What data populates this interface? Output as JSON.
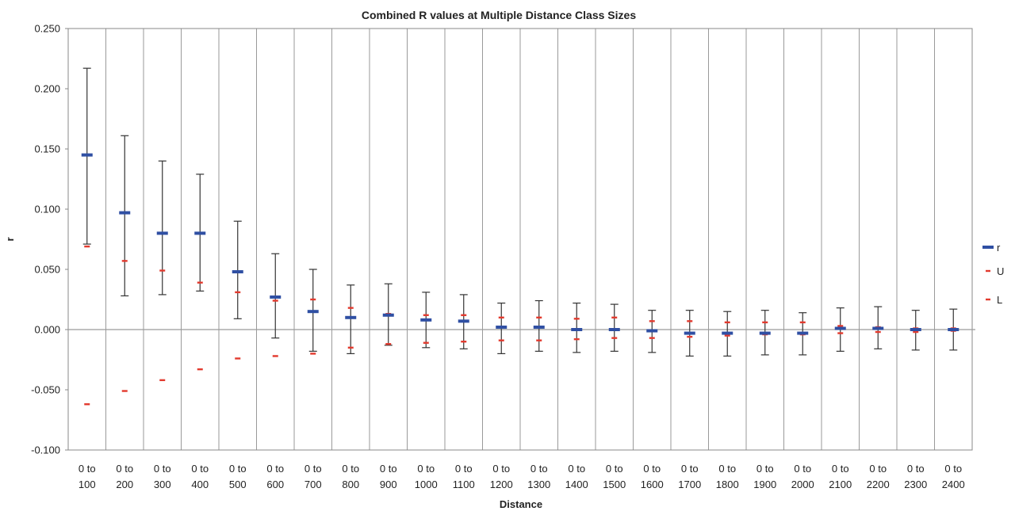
{
  "chart_data": {
    "type": "scatter",
    "title": "Combined R values at Multiple Distance Class Sizes",
    "xlabel": "Distance",
    "ylabel": "r",
    "ylim": [
      -0.1,
      0.25
    ],
    "yticks": [
      "-0.100",
      "-0.050",
      "0.000",
      "0.050",
      "0.100",
      "0.150",
      "0.200",
      "0.250"
    ],
    "grid": "vertical",
    "legend_position": "right",
    "categories": [
      [
        "0 to",
        "100"
      ],
      [
        "0 to",
        "200"
      ],
      [
        "0 to",
        "300"
      ],
      [
        "0 to",
        "400"
      ],
      [
        "0 to",
        "500"
      ],
      [
        "0 to",
        "600"
      ],
      [
        "0 to",
        "700"
      ],
      [
        "0 to",
        "800"
      ],
      [
        "0 to",
        "900"
      ],
      [
        "0 to",
        "1000"
      ],
      [
        "0 to",
        "1100"
      ],
      [
        "0 to",
        "1200"
      ],
      [
        "0 to",
        "1300"
      ],
      [
        "0 to",
        "1400"
      ],
      [
        "0 to",
        "1500"
      ],
      [
        "0 to",
        "1600"
      ],
      [
        "0 to",
        "1700"
      ],
      [
        "0 to",
        "1800"
      ],
      [
        "0 to",
        "1900"
      ],
      [
        "0 to",
        "2000"
      ],
      [
        "0 to",
        "2100"
      ],
      [
        "0 to",
        "2200"
      ],
      [
        "0 to",
        "2300"
      ],
      [
        "0 to",
        "2400"
      ]
    ],
    "error_bars": {
      "upper": [
        0.217,
        0.161,
        0.14,
        0.129,
        0.09,
        0.063,
        0.05,
        0.037,
        0.038,
        0.031,
        0.029,
        0.022,
        0.024,
        0.022,
        0.021,
        0.016,
        0.016,
        0.015,
        0.016,
        0.014,
        0.018,
        0.019,
        0.016,
        0.017
      ],
      "lower": [
        0.071,
        0.028,
        0.029,
        0.032,
        0.009,
        -0.007,
        -0.018,
        -0.02,
        -0.013,
        -0.015,
        -0.016,
        -0.02,
        -0.018,
        -0.019,
        -0.018,
        -0.019,
        -0.022,
        -0.022,
        -0.021,
        -0.021,
        -0.018,
        -0.016,
        -0.017,
        -0.017
      ]
    },
    "series": [
      {
        "name": "r",
        "color": "#2f4fa3",
        "marker": "bar",
        "values": [
          0.145,
          0.097,
          0.08,
          0.08,
          0.048,
          0.027,
          0.015,
          0.01,
          0.012,
          0.008,
          0.007,
          0.002,
          0.002,
          0.0,
          0.0,
          -0.001,
          -0.003,
          -0.003,
          -0.003,
          -0.003,
          0.001,
          0.001,
          0.0,
          0.0
        ]
      },
      {
        "name": "U",
        "color": "#e23a2e",
        "marker": "dash",
        "values": [
          0.069,
          0.057,
          0.049,
          0.039,
          0.031,
          0.024,
          0.025,
          0.018,
          0.013,
          0.012,
          0.012,
          0.01,
          0.01,
          0.009,
          0.01,
          0.007,
          0.007,
          0.006,
          0.006,
          0.006,
          0.003,
          0.002,
          0.001,
          0.001
        ]
      },
      {
        "name": "L",
        "color": "#e23a2e",
        "marker": "dash",
        "values": [
          -0.062,
          -0.051,
          -0.042,
          -0.033,
          -0.024,
          -0.022,
          -0.02,
          -0.015,
          -0.012,
          -0.011,
          -0.01,
          -0.009,
          -0.009,
          -0.008,
          -0.007,
          -0.007,
          -0.006,
          -0.005,
          -0.004,
          -0.004,
          -0.003,
          -0.002,
          -0.002,
          -0.001
        ]
      }
    ]
  }
}
